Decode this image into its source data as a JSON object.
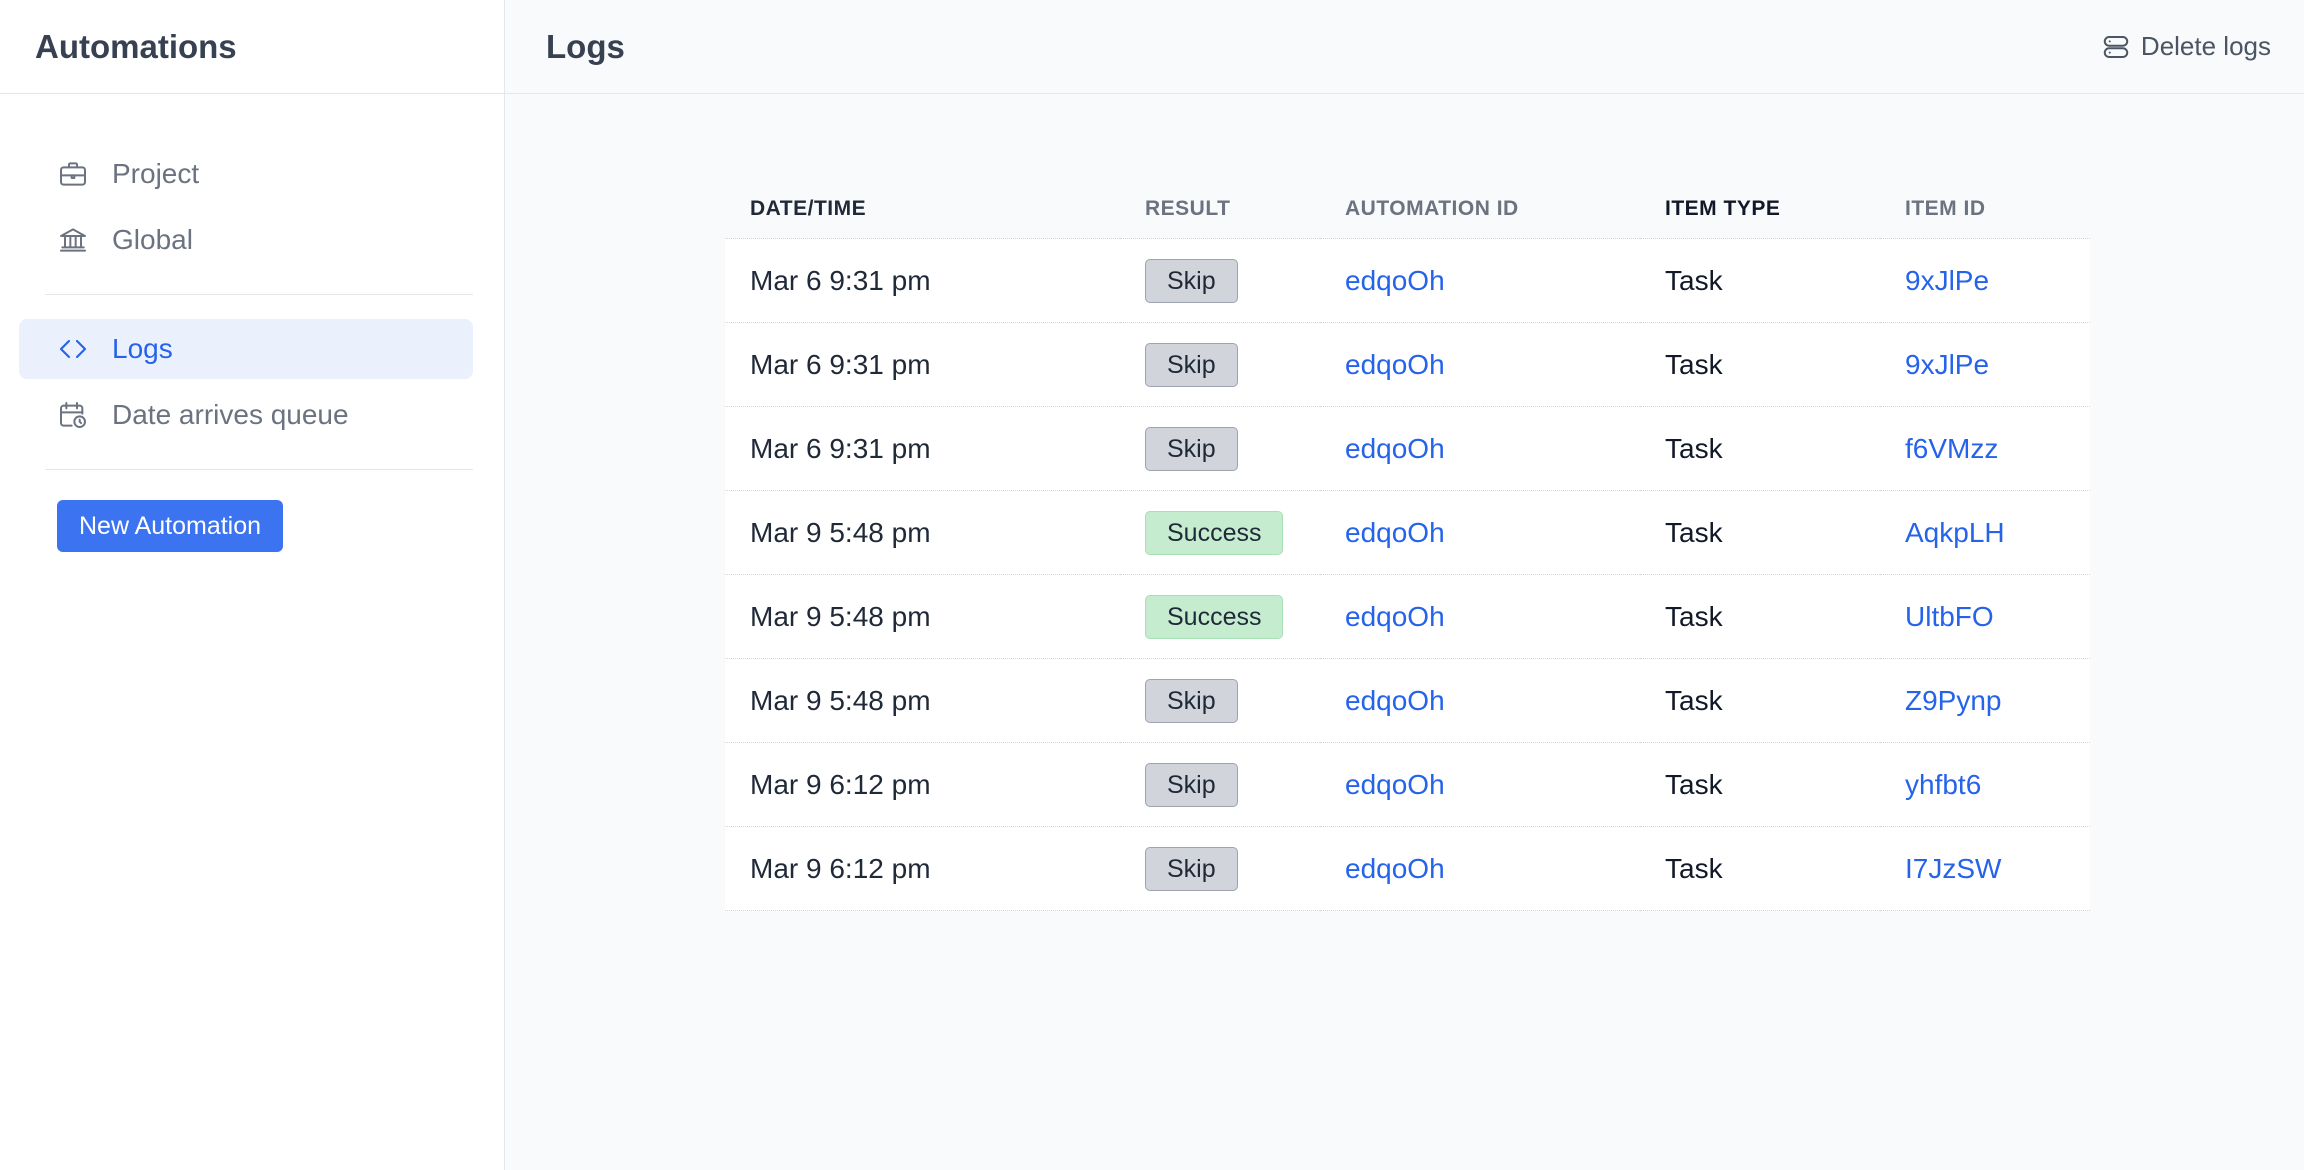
{
  "sidebar": {
    "title": "Automations",
    "items": [
      {
        "label": "Project",
        "icon": "briefcase-icon"
      },
      {
        "label": "Global",
        "icon": "bank-icon"
      },
      {
        "label": "Logs",
        "icon": "code-icon",
        "active": true
      },
      {
        "label": "Date arrives queue",
        "icon": "calendar-clock-icon"
      }
    ],
    "new_button": "New Automation"
  },
  "header": {
    "title": "Logs",
    "delete_logs": "Delete logs"
  },
  "table": {
    "columns": [
      "DATE/TIME",
      "RESULT",
      "AUTOMATION ID",
      "ITEM TYPE",
      "ITEM ID"
    ],
    "rows": [
      {
        "datetime": "Mar 6 9:31 pm",
        "result": "Skip",
        "automation_id": "edqoOh",
        "item_type": "Task",
        "item_id": "9xJlPe"
      },
      {
        "datetime": "Mar 6 9:31 pm",
        "result": "Skip",
        "automation_id": "edqoOh",
        "item_type": "Task",
        "item_id": "9xJlPe"
      },
      {
        "datetime": "Mar 6 9:31 pm",
        "result": "Skip",
        "automation_id": "edqoOh",
        "item_type": "Task",
        "item_id": "f6VMzz"
      },
      {
        "datetime": "Mar 9 5:48 pm",
        "result": "Success",
        "automation_id": "edqoOh",
        "item_type": "Task",
        "item_id": "AqkpLH"
      },
      {
        "datetime": "Mar 9 5:48 pm",
        "result": "Success",
        "automation_id": "edqoOh",
        "item_type": "Task",
        "item_id": "UltbFO"
      },
      {
        "datetime": "Mar 9 5:48 pm",
        "result": "Skip",
        "automation_id": "edqoOh",
        "item_type": "Task",
        "item_id": "Z9Pynp"
      },
      {
        "datetime": "Mar 9 6:12 pm",
        "result": "Skip",
        "automation_id": "edqoOh",
        "item_type": "Task",
        "item_id": "yhfbt6"
      },
      {
        "datetime": "Mar 9 6:12 pm",
        "result": "Skip",
        "automation_id": "edqoOh",
        "item_type": "Task",
        "item_id": "I7JzSW"
      }
    ]
  },
  "colors": {
    "accent": "#3b73f0",
    "link": "#2563eb",
    "active_bg": "#eaf1fd",
    "skip_badge": "#d1d5db",
    "success_badge": "#c6ecd0"
  }
}
